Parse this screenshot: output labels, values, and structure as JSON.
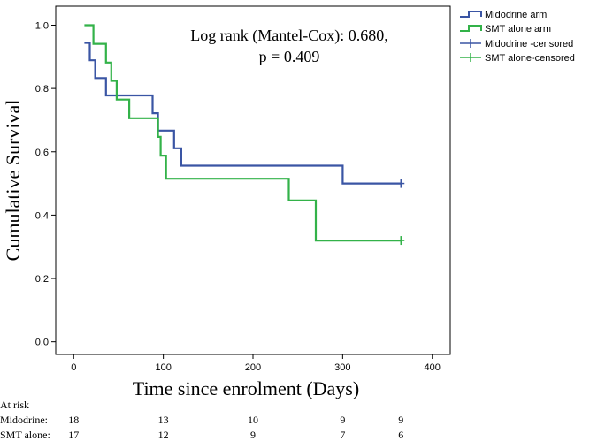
{
  "colors": {
    "midodrine": "#3a55a4",
    "smt": "#33b249",
    "frame": "#000000"
  },
  "chart_data": {
    "type": "line",
    "subtype": "kaplan-meier",
    "title": "",
    "xlabel": "Time since enrolment (Days)",
    "ylabel": "Cumulative Survival",
    "xlim": [
      -20,
      420
    ],
    "ylim": [
      -0.04,
      1.06
    ],
    "xticks": [
      "0",
      "100",
      "200",
      "300",
      "400"
    ],
    "xtick_values": [
      0,
      100,
      200,
      300,
      400
    ],
    "yticks": [
      "0.0",
      "0.2",
      "0.4",
      "0.6",
      "0.8",
      "1.0"
    ],
    "ytick_values": [
      0.0,
      0.2,
      0.4,
      0.6,
      0.8,
      1.0
    ],
    "annotation": [
      "Log rank (Mantel-Cox): 0.680,",
      "p = 0.409"
    ],
    "legend": [
      "Midodrine arm",
      "SMT alone arm",
      "Midodrine -censored",
      "SMT alone-censored"
    ],
    "series": [
      {
        "name": "Midodrine arm",
        "color_key": "midodrine",
        "start": [
          12,
          0.944
        ],
        "steps": [
          [
            18,
            0.889
          ],
          [
            24,
            0.833
          ],
          [
            36,
            0.778
          ],
          [
            88,
            0.722
          ],
          [
            94,
            0.667
          ],
          [
            112,
            0.611
          ],
          [
            120,
            0.556
          ],
          [
            300,
            0.5
          ]
        ],
        "end_x": 365,
        "censored": [
          [
            365,
            0.5
          ]
        ]
      },
      {
        "name": "SMT alone arm",
        "color_key": "smt",
        "start": [
          12,
          1.0
        ],
        "steps": [
          [
            22,
            0.941
          ],
          [
            36,
            0.882
          ],
          [
            42,
            0.824
          ],
          [
            48,
            0.765
          ],
          [
            62,
            0.706
          ],
          [
            94,
            0.647
          ],
          [
            97,
            0.588
          ],
          [
            103,
            0.515
          ],
          [
            240,
            0.446
          ],
          [
            270,
            0.32
          ]
        ],
        "end_x": 365,
        "censored": [
          [
            365,
            0.32
          ]
        ]
      }
    ]
  },
  "at_risk": {
    "title": "At risk",
    "timepoints": [
      0,
      100,
      200,
      300,
      365
    ],
    "rows": [
      {
        "label": "Midodrine:",
        "values": [
          "18",
          "13",
          "10",
          "9",
          "9"
        ]
      },
      {
        "label": "SMT alone:",
        "values": [
          "17",
          "12",
          "9",
          "7",
          "6"
        ]
      }
    ]
  }
}
